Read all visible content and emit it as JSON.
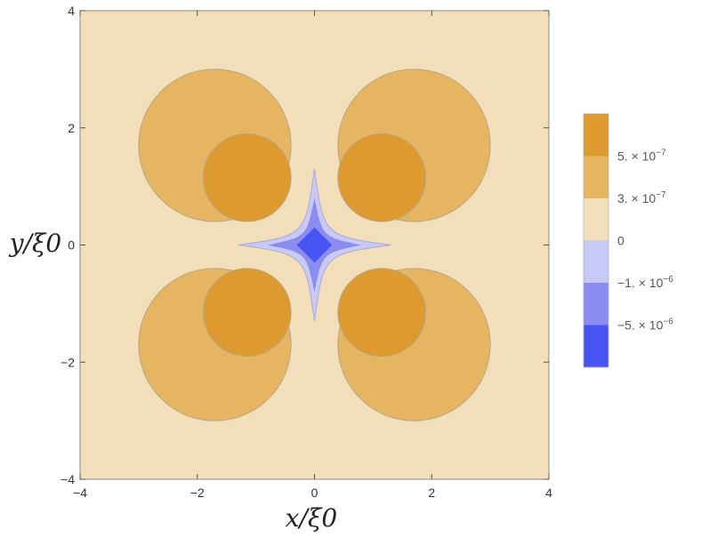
{
  "chart_data": {
    "type": "contour",
    "title": "",
    "xlabel": "x/ξ0",
    "ylabel": "y/ξ0",
    "xlim": [
      -4,
      4
    ],
    "ylim": [
      -4,
      4
    ],
    "x_ticks": [
      -4,
      -2,
      0,
      2,
      4
    ],
    "y_ticks": [
      -4,
      -2,
      0,
      2,
      4
    ],
    "x_tick_labels": [
      "−4",
      "−2",
      "0",
      "2",
      "4"
    ],
    "y_tick_labels": [
      "−4",
      "−2",
      "0",
      "2",
      "4"
    ],
    "legend_position": "right",
    "levels": [
      {
        "label": "",
        "color": "#dd9a2f"
      },
      {
        "label": "5. × 10^−7",
        "color": "#e6b561"
      },
      {
        "label": "3. × 10^−7",
        "color": "#f2deb8"
      },
      {
        "label": "0",
        "color": "#c9c9f5"
      },
      {
        "label": "−1. × 10^−6",
        "color": "#8a8cf0"
      },
      {
        "label": "−5. × 10^−6",
        "color": "#4655f2"
      }
    ],
    "regions": {
      "outer_lobes": [
        {
          "cx": 1.7,
          "cy": 1.7,
          "rx": 1.3,
          "ry": 1.3
        },
        {
          "cx": -1.7,
          "cy": 1.7,
          "rx": 1.3,
          "ry": 1.3
        },
        {
          "cx": 1.7,
          "cy": -1.7,
          "rx": 1.3,
          "ry": 1.3
        },
        {
          "cx": -1.7,
          "cy": -1.7,
          "rx": 1.3,
          "ry": 1.3
        }
      ],
      "inner_lobes": [
        {
          "cx": 1.15,
          "cy": 1.15,
          "rx": 0.75,
          "ry": 0.75
        },
        {
          "cx": -1.15,
          "cy": 1.15,
          "rx": 0.75,
          "ry": 0.75
        },
        {
          "cx": 1.15,
          "cy": -1.15,
          "rx": 0.75,
          "ry": 0.75
        },
        {
          "cx": -1.15,
          "cy": -1.15,
          "rx": 0.75,
          "ry": 0.75
        }
      ],
      "center_star": [
        1.3,
        1.3
      ],
      "center_cross": [
        0.8,
        0.8
      ],
      "center_diamond": [
        0.3,
        0.3
      ]
    }
  }
}
